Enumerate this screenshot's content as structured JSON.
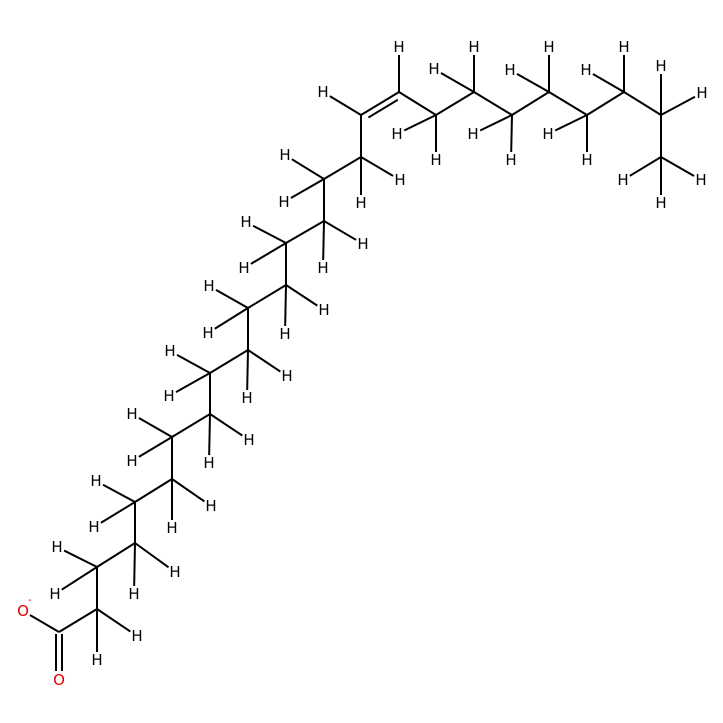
{
  "diagram": {
    "type": "skeletal-formula",
    "colors": {
      "bond": "#000000",
      "hydrogen": "#000000",
      "oxygen": "#e00000",
      "background": "#ffffff"
    },
    "atoms": [
      {
        "id": "O1",
        "label": "O",
        "charge": "-",
        "color": "oxygen"
      },
      {
        "id": "O2",
        "label": "O",
        "color": "oxygen"
      }
    ],
    "hydrogen_label": "H",
    "charge_symbol": "-"
  }
}
